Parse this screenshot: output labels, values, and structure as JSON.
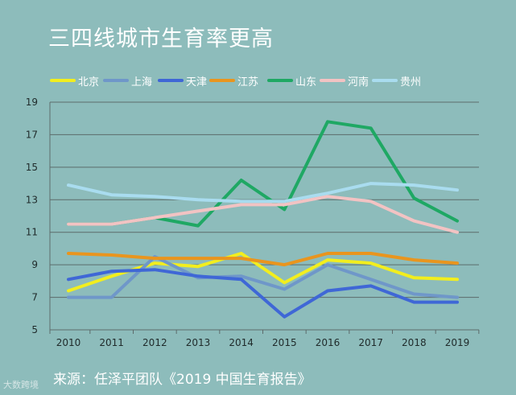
{
  "title": "三四线城市生育率更高",
  "source": "来源：任泽平团队《2019 中国生育报告》",
  "watermark": "大数跨境",
  "chart_data": {
    "type": "line",
    "title": "三四线城市生育率更高",
    "xlabel": "",
    "ylabel": "",
    "x": [
      "2010",
      "2011",
      "2012",
      "2013",
      "2014",
      "2015",
      "2016",
      "2017",
      "2018",
      "2019"
    ],
    "ylim": [
      5,
      19
    ],
    "yticks": [
      5,
      7,
      9,
      11,
      13,
      15,
      17,
      19
    ],
    "grid": true,
    "legend_position": "top",
    "series": [
      {
        "name": "北京",
        "color": "#f2ee1e",
        "values": [
          7.4,
          8.3,
          9.1,
          8.9,
          9.7,
          7.9,
          9.3,
          9.1,
          8.2,
          8.1
        ]
      },
      {
        "name": "上海",
        "color": "#6f97c9",
        "values": [
          7.0,
          7.0,
          9.5,
          8.2,
          8.3,
          7.5,
          9.0,
          8.1,
          7.2,
          7.0
        ]
      },
      {
        "name": "天津",
        "color": "#3f67d6",
        "values": [
          8.1,
          8.6,
          8.7,
          8.3,
          8.1,
          5.8,
          7.4,
          7.7,
          6.7,
          6.7
        ]
      },
      {
        "name": "江苏",
        "color": "#e9951e",
        "values": [
          9.7,
          9.6,
          9.4,
          9.4,
          9.4,
          9.0,
          9.7,
          9.7,
          9.3,
          9.1
        ]
      },
      {
        "name": "山东",
        "color": "#1fa864",
        "values": [
          11.5,
          11.5,
          11.9,
          11.4,
          14.2,
          12.4,
          17.8,
          17.4,
          13.1,
          11.7
        ]
      },
      {
        "name": "河南",
        "color": "#f2c3c3",
        "values": [
          11.5,
          11.5,
          11.9,
          12.3,
          12.7,
          12.7,
          13.2,
          12.9,
          11.7,
          11.0
        ]
      },
      {
        "name": "贵州",
        "color": "#a9dcef",
        "values": [
          13.9,
          13.3,
          13.2,
          13.0,
          12.9,
          12.9,
          13.4,
          14.0,
          13.9,
          13.6
        ]
      }
    ]
  }
}
